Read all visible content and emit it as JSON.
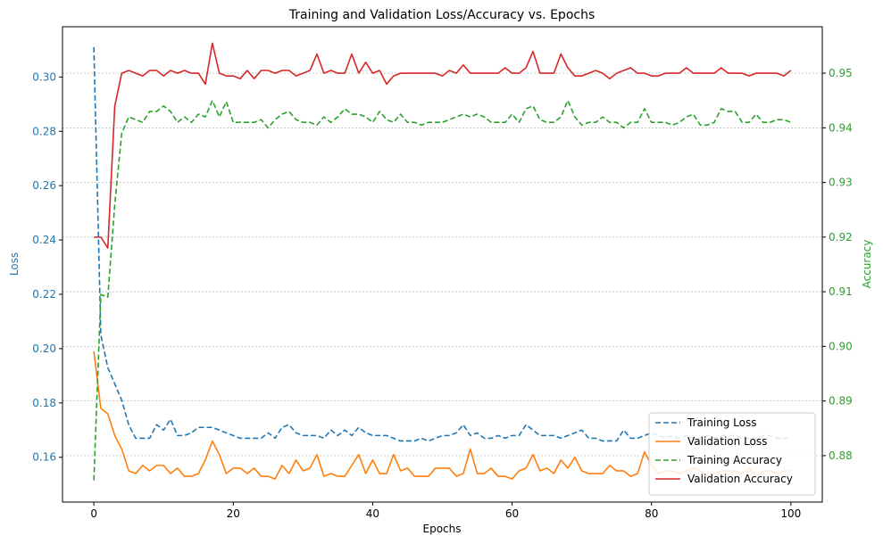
{
  "chart_data": {
    "type": "line",
    "title": "Training and Validation Loss/Accuracy vs. Epochs",
    "xlabel": "Epochs",
    "ylabel_left": "Loss",
    "ylabel_right": "Accuracy",
    "xlim": [
      -4.5,
      104.5
    ],
    "ylim_left": [
      0.1435,
      0.3185
    ],
    "ylim_right": [
      0.8715,
      0.9585
    ],
    "xticks": [
      "0",
      "20",
      "40",
      "60",
      "80",
      "100"
    ],
    "yticks_left": [
      "0.16",
      "0.18",
      "0.20",
      "0.22",
      "0.24",
      "0.26",
      "0.28",
      "0.30"
    ],
    "yticks_right": [
      "0.88",
      "0.89",
      "0.90",
      "0.91",
      "0.92",
      "0.93",
      "0.94",
      "0.95"
    ],
    "grid": "horizontal dotted (right axis)",
    "legend_position": "bottom-right",
    "colors": {
      "left_axis": "#1f77b4",
      "right_axis": "#2ca02c"
    },
    "series": [
      {
        "name": "Training Loss",
        "axis": "left",
        "color": "#1f77b4",
        "style": "dashed",
        "values": [
          0.311,
          0.205,
          0.193,
          0.187,
          0.181,
          0.172,
          0.167,
          0.167,
          0.167,
          0.172,
          0.17,
          0.174,
          0.168,
          0.168,
          0.169,
          0.171,
          0.171,
          0.171,
          0.17,
          0.169,
          0.168,
          0.167,
          0.167,
          0.167,
          0.167,
          0.169,
          0.167,
          0.171,
          0.172,
          0.169,
          0.168,
          0.168,
          0.168,
          0.167,
          0.17,
          0.168,
          0.17,
          0.168,
          0.171,
          0.169,
          0.168,
          0.168,
          0.168,
          0.167,
          0.166,
          0.166,
          0.166,
          0.167,
          0.166,
          0.167,
          0.168,
          0.168,
          0.169,
          0.172,
          0.168,
          0.169,
          0.167,
          0.167,
          0.168,
          0.167,
          0.168,
          0.168,
          0.172,
          0.17,
          0.168,
          0.168,
          0.168,
          0.167,
          0.168,
          0.169,
          0.17,
          0.167,
          0.167,
          0.166,
          0.166,
          0.166,
          0.17,
          0.167,
          0.167,
          0.168,
          0.169,
          0.168,
          0.167,
          0.168,
          0.167,
          0.168,
          0.167,
          0.167,
          0.168,
          0.167,
          0.168,
          0.168,
          0.168,
          0.167,
          0.167,
          0.167,
          0.168,
          0.168,
          0.167,
          0.167,
          0.167
        ]
      },
      {
        "name": "Validation Loss",
        "axis": "left",
        "color": "#ff7f0e",
        "style": "solid",
        "values": [
          0.199,
          0.178,
          0.176,
          0.168,
          0.163,
          0.155,
          0.154,
          0.157,
          0.155,
          0.157,
          0.157,
          0.154,
          0.156,
          0.153,
          0.153,
          0.154,
          0.159,
          0.166,
          0.161,
          0.154,
          0.156,
          0.156,
          0.154,
          0.156,
          0.153,
          0.153,
          0.152,
          0.157,
          0.154,
          0.159,
          0.155,
          0.156,
          0.161,
          0.153,
          0.154,
          0.153,
          0.153,
          0.157,
          0.161,
          0.154,
          0.159,
          0.154,
          0.154,
          0.161,
          0.155,
          0.156,
          0.153,
          0.153,
          0.153,
          0.156,
          0.156,
          0.156,
          0.153,
          0.154,
          0.163,
          0.154,
          0.154,
          0.156,
          0.153,
          0.153,
          0.152,
          0.155,
          0.156,
          0.161,
          0.155,
          0.156,
          0.154,
          0.159,
          0.156,
          0.16,
          0.155,
          0.154,
          0.154,
          0.154,
          0.157,
          0.155,
          0.155,
          0.153,
          0.154,
          0.162,
          0.157,
          0.154,
          0.155,
          0.155,
          0.154,
          0.155,
          0.156,
          0.155,
          0.153,
          0.154,
          0.155,
          0.155,
          0.155,
          0.154,
          0.156,
          0.153,
          0.155,
          0.155,
          0.154,
          0.155,
          0.155
        ]
      },
      {
        "name": "Training Accuracy",
        "axis": "right",
        "color": "#2ca02c",
        "style": "dashed",
        "values": [
          0.8755,
          0.9095,
          0.909,
          0.926,
          0.939,
          0.942,
          0.9415,
          0.941,
          0.943,
          0.943,
          0.944,
          0.943,
          0.941,
          0.942,
          0.941,
          0.9425,
          0.942,
          0.945,
          0.942,
          0.9448,
          0.941,
          0.941,
          0.941,
          0.941,
          0.9415,
          0.94,
          0.9415,
          0.9425,
          0.943,
          0.9415,
          0.941,
          0.941,
          0.9405,
          0.942,
          0.941,
          0.942,
          0.9435,
          0.9425,
          0.9425,
          0.942,
          0.941,
          0.943,
          0.9415,
          0.941,
          0.9425,
          0.941,
          0.941,
          0.9405,
          0.941,
          0.941,
          0.941,
          0.9415,
          0.942,
          0.9425,
          0.942,
          0.9425,
          0.942,
          0.941,
          0.941,
          0.941,
          0.9425,
          0.941,
          0.9435,
          0.944,
          0.9415,
          0.941,
          0.941,
          0.942,
          0.945,
          0.942,
          0.9405,
          0.941,
          0.941,
          0.942,
          0.941,
          0.941,
          0.94,
          0.941,
          0.941,
          0.9435,
          0.941,
          0.941,
          0.941,
          0.9405,
          0.941,
          0.942,
          0.9425,
          0.9405,
          0.9405,
          0.941,
          0.9435,
          0.943,
          0.943,
          0.941,
          0.941,
          0.9425,
          0.941,
          0.941,
          0.9415,
          0.9415,
          0.941
        ]
      },
      {
        "name": "Validation Accuracy",
        "axis": "right",
        "color": "#d62728",
        "style": "solid",
        "values": [
          0.92,
          0.92,
          0.918,
          0.944,
          0.95,
          0.9505,
          0.95,
          0.9495,
          0.9505,
          0.9505,
          0.9495,
          0.9505,
          0.95,
          0.9505,
          0.95,
          0.95,
          0.948,
          0.9555,
          0.95,
          0.9495,
          0.9495,
          0.949,
          0.9505,
          0.949,
          0.9505,
          0.9505,
          0.95,
          0.9505,
          0.9505,
          0.9495,
          0.95,
          0.9505,
          0.9535,
          0.95,
          0.9505,
          0.95,
          0.95,
          0.9535,
          0.95,
          0.952,
          0.95,
          0.9505,
          0.948,
          0.9495,
          0.95,
          0.95,
          0.95,
          0.95,
          0.95,
          0.95,
          0.9495,
          0.9505,
          0.95,
          0.9515,
          0.95,
          0.95,
          0.95,
          0.95,
          0.95,
          0.951,
          0.95,
          0.95,
          0.951,
          0.954,
          0.95,
          0.95,
          0.95,
          0.9535,
          0.951,
          0.9495,
          0.9495,
          0.95,
          0.9505,
          0.95,
          0.949,
          0.95,
          0.9505,
          0.951,
          0.95,
          0.95,
          0.9495,
          0.9495,
          0.95,
          0.95,
          0.95,
          0.951,
          0.95,
          0.95,
          0.95,
          0.95,
          0.951,
          0.95,
          0.95,
          0.95,
          0.9495,
          0.95,
          0.95,
          0.95,
          0.95,
          0.9495,
          0.9505
        ]
      }
    ]
  }
}
